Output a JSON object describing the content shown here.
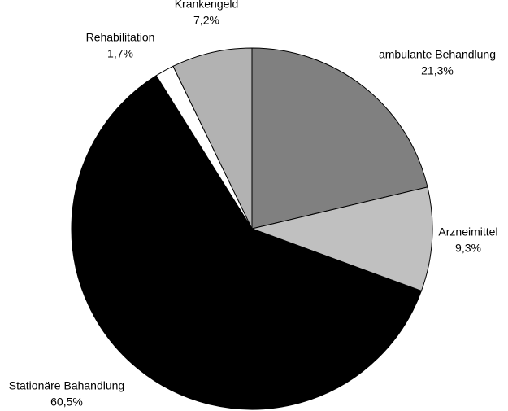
{
  "chart_data": {
    "type": "pie",
    "categories": [
      "ambulante Behandlung",
      "Arzneimittel",
      "Stationäre Bahandlung",
      "Rehabilitation",
      "Krankengeld"
    ],
    "values": [
      21.3,
      9.3,
      60.5,
      1.7,
      7.2
    ],
    "value_labels": [
      "21,3%",
      "9,3%",
      "60,5%",
      "1,7%",
      "7,2%"
    ],
    "colors": [
      "#808080",
      "#c0c0c0",
      "#000000",
      "#ffffff",
      "#b2b2b2"
    ]
  }
}
